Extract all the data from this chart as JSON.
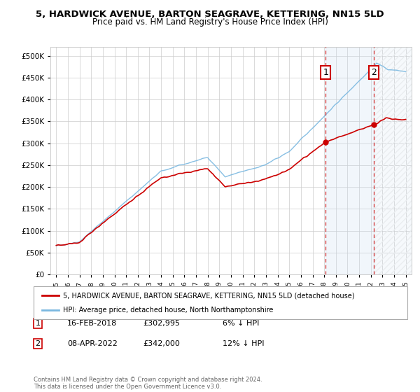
{
  "title": "5, HARDWICK AVENUE, BARTON SEAGRAVE, KETTERING, NN15 5LD",
  "subtitle": "Price paid vs. HM Land Registry's House Price Index (HPI)",
  "legend_line1": "5, HARDWICK AVENUE, BARTON SEAGRAVE, KETTERING, NN15 5LD (detached house)",
  "legend_line2": "HPI: Average price, detached house, North Northamptonshire",
  "transaction1_label": "1",
  "transaction1_date": "16-FEB-2018",
  "transaction1_price": "£302,995",
  "transaction1_hpi": "6% ↓ HPI",
  "transaction2_label": "2",
  "transaction2_date": "08-APR-2022",
  "transaction2_price": "£342,000",
  "transaction2_hpi": "12% ↓ HPI",
  "footer": "Contains HM Land Registry data © Crown copyright and database right 2024.\nThis data is licensed under the Open Government Licence v3.0.",
  "hpi_color": "#7ab8e0",
  "price_color": "#cc0000",
  "transaction_box_color": "#cc0000",
  "dashed_line_color": "#cc0000",
  "shade_color": "#ddeeff",
  "grid_color": "#cccccc",
  "bg_color": "#ffffff",
  "ylim": [
    0,
    520000
  ],
  "yticks": [
    0,
    50000,
    100000,
    150000,
    200000,
    250000,
    300000,
    350000,
    400000,
    450000,
    500000
  ],
  "xlim_start": 1994.5,
  "xlim_end": 2025.5,
  "transaction1_x": 2018.12,
  "transaction2_x": 2022.27,
  "transaction1_y": 302995,
  "transaction2_y": 342000
}
